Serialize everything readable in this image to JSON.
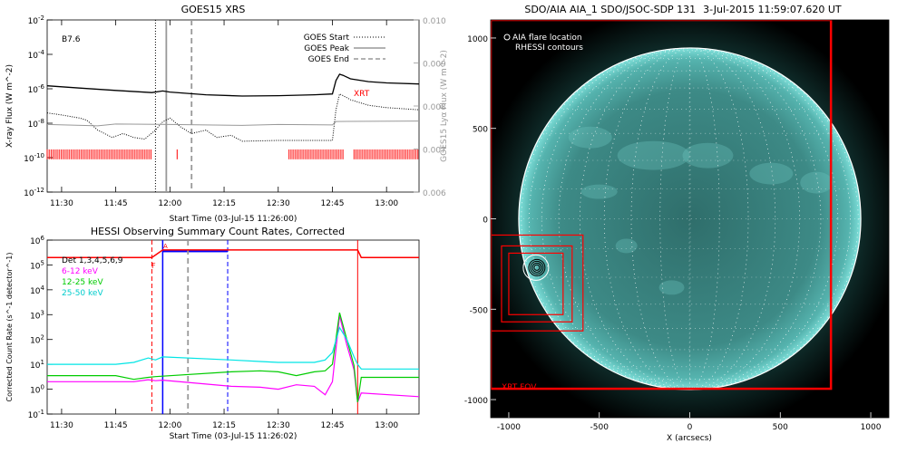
{
  "colors": {
    "goes_long": "#000000",
    "goes_short": "#000000",
    "lyman_alpha": "#999999",
    "rhessi_bars": "#ff0000",
    "vline_peak": "#999999",
    "hessi_bands": [
      "#000000",
      "#ff00ff",
      "#00cc00",
      "#00e5e5"
    ],
    "hessi_saa": "#ff0000",
    "hessi_night": "#0000ff",
    "hessi_peak_line": "#999999",
    "aia_fov_box": "#ff0000",
    "aia_limb": "#ffffff",
    "aia_disk": "#3f8a87",
    "aia_background": "#000000"
  },
  "chart_data": [
    {
      "type": "line",
      "title": "GOES15 XRS",
      "xlabel": "Start Time (03-Jul-15 11:26:00)",
      "ylabel": "X-ray Flux (W m^-2)",
      "ylabel_right": "GOES15 Lyα Flux (W m^-2)",
      "xlim": [
        "11:26",
        "13:09"
      ],
      "x_ticks": [
        "11:30",
        "11:45",
        "12:00",
        "12:15",
        "12:30",
        "12:45",
        "13:00"
      ],
      "ylim": [
        1e-12,
        0.01
      ],
      "yscale": "log",
      "y_ticks": [
        "10^-2",
        "10^-4",
        "10^-6",
        "10^-8",
        "10^-10",
        "10^-12"
      ],
      "ylim_right": [
        0.006,
        0.01
      ],
      "y_ticks_right": [
        "0.010",
        "0.009",
        "0.008",
        "0.007",
        "0.006"
      ],
      "annotation_class": "B7.6",
      "annotation_xrt": "XRT",
      "legend": [
        "GOES Start",
        "GOES Peak",
        "GOES End"
      ],
      "vlines": {
        "start": "11:56",
        "peak": "11:59",
        "end": "12:06"
      },
      "series": [
        {
          "name": "",
          "x": [
            "11:26",
            "11:35",
            "11:45",
            "11:55",
            "11:58",
            "12:00",
            "12:10",
            "12:20",
            "12:30",
            "12:40",
            "12:45",
            "12:46",
            "12:47",
            "12:48",
            "12:50",
            "12:55",
            "13:00",
            "13:09"
          ],
          "values": [
            1.5e-06,
            1.1e-06,
            8e-07,
            6e-07,
            7.5e-07,
            6.5e-07,
            4.5e-07,
            3.8e-07,
            4e-07,
            4.5e-07,
            5e-07,
            3e-06,
            7e-06,
            6e-06,
            3.8e-06,
            2.6e-06,
            2.2e-06,
            1.9e-06
          ]
        },
        {
          "name": "",
          "x": [
            "11:26",
            "11:30",
            "11:35",
            "11:37",
            "11:40",
            "11:44",
            "11:47",
            "11:50",
            "11:53",
            "11:56",
            "11:58",
            "12:00",
            "12:03",
            "12:06",
            "12:10",
            "12:13",
            "12:17",
            "12:20",
            "12:30",
            "12:40",
            "12:45",
            "12:46",
            "12:47",
            "12:48",
            "12:50",
            "12:55",
            "13:00",
            "13:09"
          ],
          "values": [
            4e-08,
            3e-08,
            2e-08,
            1.5e-08,
            4e-09,
            1.5e-09,
            2.5e-09,
            1.5e-09,
            1.2e-09,
            4e-09,
            1.2e-08,
            2e-08,
            6e-09,
            2.5e-09,
            4e-09,
            1.5e-09,
            2e-09,
            9e-10,
            1e-09,
            1e-09,
            1e-09,
            6e-08,
            5e-07,
            4e-07,
            2.3e-07,
            1.1e-07,
            8e-08,
            6e-08
          ]
        },
        {
          "name": "",
          "axis": "right",
          "x": [
            "11:26",
            "11:40",
            "11:45",
            "12:00",
            "12:20",
            "12:30",
            "12:45",
            "12:46",
            "13:09"
          ],
          "values": [
            0.00757,
            0.00754,
            0.00758,
            0.00757,
            0.00755,
            0.00757,
            0.00756,
            0.00764,
            0.00765
          ]
        }
      ],
      "rhessi_bars": [
        [
          "11:26",
          "11:55"
        ],
        [
          "12:02",
          "12:02"
        ],
        [
          "12:33",
          "12:48"
        ],
        [
          "12:51",
          "13:09"
        ]
      ]
    },
    {
      "type": "line",
      "title": "HESSI Observing Summary Count Rates, Corrected",
      "xlabel": "Start Time (03-Jul-15 11:26:02)",
      "ylabel": "Corrected Count Rate (s^-1 detector^-1)",
      "xlim": [
        "11:26",
        "13:09"
      ],
      "x_ticks": [
        "11:30",
        "11:45",
        "12:00",
        "12:15",
        "12:30",
        "12:45",
        "13:00"
      ],
      "ylim": [
        0.1,
        1000000.0
      ],
      "yscale": "log",
      "y_ticks": [
        "10^-1",
        "10^0",
        "10^1",
        "10^2",
        "10^3",
        "10^4",
        "10^5",
        "10^6"
      ],
      "legend": [
        "Det 1,3,4,5,6,9",
        "6-12 keV",
        "12-25 keV",
        "25-50 keV"
      ],
      "annotations": {
        "saa_label": "F",
        "small_label": "A"
      },
      "vlines": {
        "saa_start": "11:55",
        "peak": "12:05",
        "night_start": "11:58",
        "night_end": "12:16",
        "saa_end": "12:52"
      },
      "series": [
        {
          "name": "6-12 keV",
          "x": [
            "11:26",
            "11:50",
            "11:54",
            "11:56",
            "11:58",
            "12:17",
            "12:25",
            "12:30",
            "12:35",
            "12:40",
            "12:43",
            "12:45",
            "12:47",
            "12:49",
            "12:51",
            "12:52",
            "12:53",
            "13:09"
          ],
          "values": [
            2.0,
            2.0,
            2.4,
            2.2,
            2.3,
            1.3,
            1.2,
            1.0,
            1.5,
            1.3,
            0.6,
            2.0,
            900,
            60,
            6,
            0.3,
            0.7,
            0.5
          ]
        },
        {
          "name": "12-25 keV",
          "x": [
            "11:26",
            "11:45",
            "11:50",
            "11:54",
            "11:56",
            "12:17",
            "12:25",
            "12:30",
            "12:35",
            "12:40",
            "12:43",
            "12:45",
            "12:47",
            "12:49",
            "12:51",
            "12:52",
            "12:53",
            "13:09"
          ],
          "values": [
            3.5,
            3.5,
            2.5,
            3.0,
            3.2,
            5.0,
            5.5,
            5.0,
            3.5,
            5.0,
            5.5,
            10,
            1200,
            100,
            9,
            0.3,
            3.0,
            3.0
          ]
        },
        {
          "name": "25-50 keV",
          "x": [
            "11:26",
            "11:35",
            "11:45",
            "11:50",
            "11:54",
            "11:56",
            "11:58",
            "12:17",
            "12:25",
            "12:30",
            "12:35",
            "12:40",
            "12:43",
            "12:45",
            "12:47",
            "12:49",
            "12:51",
            "12:52",
            "12:53",
            "13:09"
          ],
          "values": [
            10,
            10,
            10,
            12,
            18,
            15,
            20,
            15,
            13,
            12,
            12,
            12,
            15,
            30,
            300,
            100,
            20,
            10,
            6.5,
            6.5
          ]
        },
        {
          "name": "Det 1,3,4,5,6,9",
          "x": [
            "11:26",
            "11:55",
            "11:56",
            "11:58",
            "12:17",
            "12:52",
            "12:53",
            "13:09"
          ],
          "values": [
            200000.0,
            200000.0,
            250000.0,
            400000.0,
            400000.0,
            400000.0,
            200000.0,
            200000.0
          ]
        }
      ]
    },
    {
      "type": "scatter",
      "title": "SDO/AIA AIA_1 SDO/JSOC-SDP 131",
      "timestamp": "3-Jul-2015 11:59:07.620 UT",
      "xlabel": "X (arcsecs)",
      "ylabel": "",
      "xlim": [
        -1100,
        1100
      ],
      "ylim": [
        -1100,
        1100
      ],
      "x_ticks": [
        "-1000",
        "-500",
        "0",
        "500",
        "1000"
      ],
      "y_ticks": [
        "-1000",
        "-500",
        "0",
        "500",
        "1000"
      ],
      "legend": [
        "AIA flare location",
        "RHESSI contours"
      ],
      "annotation_fov": "XRT FOV",
      "solar_radius": 945,
      "flare_location": [
        -850,
        -270
      ],
      "xrt_fov": {
        "x": [
          -1100,
          780
        ],
        "y": [
          -940,
          1100
        ]
      },
      "rhessi_boxes": [
        {
          "x": [
            -1100,
            -590
          ],
          "y": [
            -620,
            -90
          ]
        },
        {
          "x": [
            -1040,
            -650
          ],
          "y": [
            -570,
            -150
          ]
        },
        {
          "x": [
            -1000,
            -700
          ],
          "y": [
            -530,
            -190
          ]
        }
      ]
    }
  ]
}
